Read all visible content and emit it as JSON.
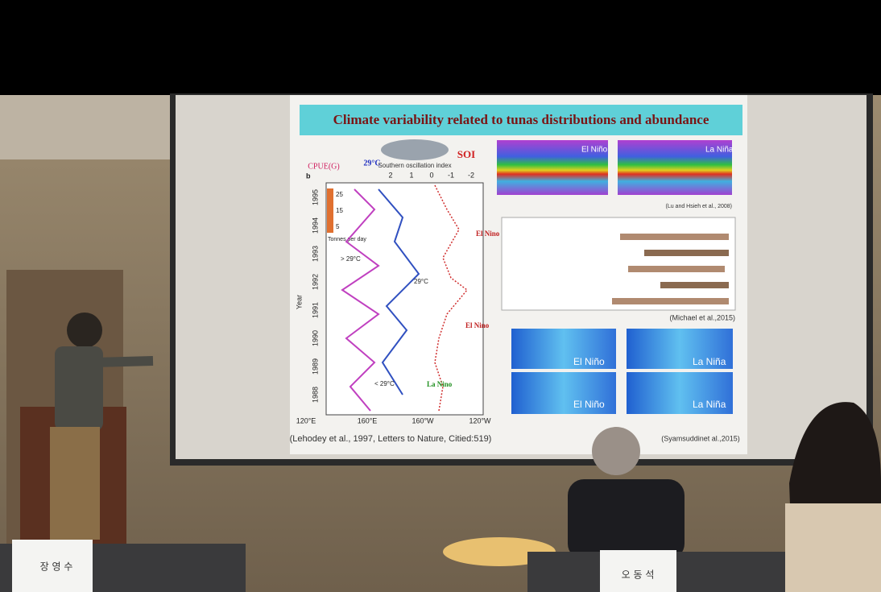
{
  "slide": {
    "title": "Climate variability related to tunas distributions and abundance",
    "fish_caption": "Southern oscillation index",
    "soi": "SOI",
    "cpue": "CPUE(G)",
    "temp_top": "29°C",
    "panel": "b",
    "top_ticks": [
      "2",
      "1",
      "0",
      "-1",
      "-2"
    ],
    "legend_ticks": [
      "25",
      "15",
      "5"
    ],
    "legend_unit": "Tonnes per day",
    "y_label": "Year",
    "years": [
      "1995",
      "1994",
      "1993",
      "1992",
      "1991",
      "1990",
      "1989",
      "1988"
    ],
    "x_ticks": [
      "120°E",
      "160°E",
      "160°W",
      "120°W"
    ],
    "annotations": {
      "gt29": "> 29°C",
      "eq29": "29°C",
      "lt29": "< 29°C",
      "el_nino_1": "El Nino",
      "el_nino_2": "El Nino",
      "la_nina": "La Nino"
    },
    "citations": {
      "lehodey": "(Lehodey et al., 1997, Letters to Nature, Citied:519)",
      "lu": "(Lu and Hsieh et al., 2008)",
      "michael": "(Michael et al.,2015)",
      "syamsuddin": "(Syamsuddinet al.,2015)"
    },
    "map_labels": [
      "El Niño",
      "La Niña",
      "El Niño",
      "La Niña",
      "El Niño",
      "La Niña"
    ]
  },
  "nameplates": [
    "장 영 수",
    "오 동 석"
  ]
}
